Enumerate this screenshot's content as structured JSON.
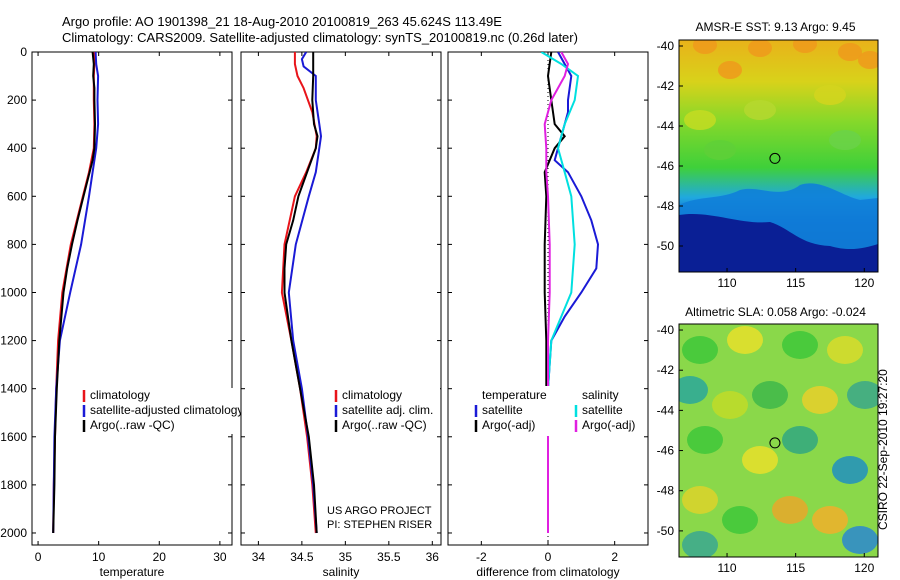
{
  "header": {
    "line1": "Argo profile: AO 1901398_21 18-Aug-2010 20100819_263 45.624S 113.49E",
    "line2": "Climatology: CARS2009. Satellite-adjusted climatology: synTS_20100819.nc (0.26d later)"
  },
  "footer": {
    "project": "US ARGO PROJECT",
    "pi": "PI: STEPHEN RISER",
    "stamp": "CSIRO 22-Sep-2010 19:27:20"
  },
  "colors": {
    "red": "#e8141a",
    "blue": "#1a1ad6",
    "black": "#000000",
    "cyan": "#00e0e0",
    "magenta": "#e020e0"
  },
  "chart_data": [
    {
      "type": "line",
      "xlabel": "temperature",
      "ylabel": "",
      "xlim": [
        -1,
        32
      ],
      "ylim": [
        2050,
        0
      ],
      "y_reversed": true,
      "xticks": [
        0,
        10,
        20,
        30
      ],
      "yticks": [
        0,
        200,
        400,
        600,
        800,
        1000,
        1200,
        1400,
        1600,
        1800,
        2000
      ],
      "legend": [
        "climatology",
        "satellite-adjusted climatology",
        "Argo(..raw -QC)"
      ],
      "series": [
        {
          "name": "climatology",
          "color": "red",
          "depth": [
            0,
            50,
            100,
            200,
            300,
            400,
            500,
            600,
            800,
            1000,
            1200,
            1400,
            1600,
            1800,
            2000
          ],
          "values": [
            9.3,
            9.3,
            9.2,
            9.2,
            9.3,
            9.2,
            8.4,
            7.4,
            5.4,
            4.0,
            3.3,
            3.0,
            2.8,
            2.6,
            2.5
          ]
        },
        {
          "name": "satellite-adjusted climatology",
          "color": "blue",
          "depth": [
            0,
            50,
            100,
            200,
            300,
            400,
            500,
            600,
            800,
            1000,
            1200,
            1400,
            1600,
            1800,
            2000
          ],
          "values": [
            9.5,
            9.6,
            9.9,
            9.8,
            9.9,
            9.6,
            9.0,
            8.4,
            7.1,
            5.3,
            3.6,
            3.0,
            2.7,
            2.6,
            2.5
          ]
        },
        {
          "name": "Argo(..raw -QC)",
          "color": "black",
          "depth": [
            0,
            50,
            100,
            150,
            200,
            300,
            400,
            450,
            500,
            600,
            700,
            800,
            900,
            1000,
            1200,
            1400,
            1600,
            1800,
            2000
          ],
          "values": [
            9.0,
            9.2,
            9.1,
            9.3,
            9.3,
            9.4,
            9.3,
            9.0,
            8.5,
            7.5,
            6.5,
            5.6,
            4.8,
            4.2,
            3.5,
            3.1,
            2.8,
            2.7,
            2.5
          ]
        }
      ]
    },
    {
      "type": "line",
      "xlabel": "salinity",
      "ylabel": "",
      "xlim": [
        33.8,
        36.1
      ],
      "ylim": [
        2050,
        0
      ],
      "y_reversed": true,
      "xticks": [
        34,
        34.5,
        35,
        35.5,
        36
      ],
      "legend": [
        "climatology",
        "satellite adj. clim.",
        "Argo(..raw -QC)"
      ],
      "series": [
        {
          "name": "climatology",
          "color": "red",
          "depth": [
            0,
            50,
            100,
            150,
            250,
            350,
            400,
            500,
            600,
            800,
            1000,
            1200,
            1400,
            1600,
            1800,
            2000
          ],
          "values": [
            34.42,
            34.42,
            34.45,
            34.52,
            34.62,
            34.67,
            34.66,
            34.55,
            34.42,
            34.3,
            34.27,
            34.38,
            34.48,
            34.56,
            34.62,
            34.66
          ]
        },
        {
          "name": "satellite adj. clim.",
          "color": "blue",
          "depth": [
            0,
            30,
            60,
            100,
            200,
            300,
            350,
            400,
            500,
            600,
            800,
            1000,
            1200,
            1400,
            1600,
            1800,
            2000
          ],
          "values": [
            34.55,
            34.5,
            34.52,
            34.66,
            34.66,
            34.7,
            34.72,
            34.7,
            34.66,
            34.58,
            34.43,
            34.35,
            34.4,
            34.5,
            34.57,
            34.63,
            34.67
          ]
        },
        {
          "name": "Argo(..raw -QC)",
          "color": "black",
          "depth": [
            0,
            100,
            200,
            300,
            350,
            400,
            500,
            600,
            700,
            800,
            900,
            1000,
            1200,
            1400,
            1600,
            1800,
            2000
          ],
          "values": [
            34.63,
            34.63,
            34.62,
            34.64,
            34.68,
            34.66,
            34.56,
            34.46,
            34.4,
            34.32,
            34.3,
            34.3,
            34.38,
            34.48,
            34.58,
            34.64,
            34.67
          ]
        }
      ]
    },
    {
      "type": "line",
      "xlabel": "difference from climatology",
      "ylabel": "",
      "xlim": [
        -3,
        3
      ],
      "ylim": [
        2050,
        0
      ],
      "y_reversed": true,
      "xticks": [
        -2,
        0,
        2
      ],
      "legend_headers": [
        "temperature",
        "salinity"
      ],
      "legend": [
        "satellite",
        "Argo(-adj)",
        "satellite",
        "Argo(-adj)"
      ],
      "series": [
        {
          "name": "satellite",
          "color": "blue",
          "depth": [
            0,
            50,
            100,
            200,
            250,
            300,
            400,
            450,
            500,
            600,
            700,
            800,
            900,
            1000,
            1100,
            1200,
            1400,
            1600,
            1800,
            2000
          ],
          "values": [
            0.3,
            0.5,
            0.7,
            0.6,
            0.6,
            0.5,
            0.3,
            0.2,
            0.6,
            1.0,
            1.3,
            1.5,
            1.45,
            1.0,
            0.5,
            0.1,
            0,
            0,
            0,
            0
          ]
        },
        {
          "name": "Argo(-adj)",
          "color": "black",
          "depth": [
            0,
            100,
            200,
            300,
            350,
            400,
            500,
            600,
            800,
            1000,
            1200,
            1400,
            1600,
            1800,
            2000
          ],
          "values": [
            0.1,
            0,
            0.1,
            0.2,
            0.5,
            0.2,
            -0.1,
            -0.05,
            -0.1,
            -0.1,
            -0.05,
            -0.05,
            0,
            0,
            0
          ]
        },
        {
          "name": "satellite",
          "color": "cyan",
          "depth": [
            0,
            50,
            100,
            200,
            300,
            400,
            500,
            600,
            800,
            1000,
            1100,
            1200,
            1400,
            1600,
            1800,
            2000
          ],
          "values": [
            -0.2,
            0.4,
            0.9,
            0.8,
            0.5,
            0.3,
            0.5,
            0.7,
            0.8,
            0.7,
            0.4,
            0.1,
            0,
            0,
            0,
            0
          ]
        },
        {
          "name": "Argo(-adj)",
          "color": "magenta",
          "depth": [
            0,
            50,
            100,
            200,
            300,
            400,
            500,
            600,
            800,
            1000,
            1200,
            1400,
            1600,
            1800,
            2000
          ],
          "values": [
            0.4,
            0.6,
            0.5,
            0.1,
            -0.1,
            -0.05,
            -0.05,
            0,
            0.05,
            0.05,
            0,
            0,
            0,
            0,
            0
          ]
        }
      ]
    },
    {
      "type": "heatmap",
      "title": "AMSR-E SST: 9.13 Argo: 9.45",
      "xticks": [
        110,
        115,
        120
      ],
      "yticks": [
        -40,
        -42,
        -44,
        -46,
        -48,
        -50
      ],
      "xlim": [
        106.5,
        121
      ],
      "ylim": [
        -51.3,
        -39.7
      ],
      "marker": {
        "lon": 113.49,
        "lat": -45.62
      }
    },
    {
      "type": "heatmap",
      "title": "Altimetric SLA: 0.058 Argo: -0.024",
      "xticks": [
        110,
        115,
        120
      ],
      "yticks": [
        -40,
        -42,
        -44,
        -46,
        -48,
        -50
      ],
      "xlim": [
        106.5,
        121
      ],
      "ylim": [
        -51.3,
        -39.7
      ],
      "marker": {
        "lon": 113.49,
        "lat": -45.62
      }
    }
  ]
}
